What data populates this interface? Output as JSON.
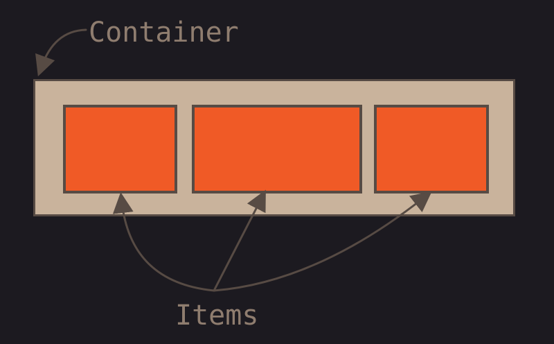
{
  "labels": {
    "container": "Container",
    "items": "Items"
  },
  "colors": {
    "background": "#1c1a20",
    "container_fill": "#c9b39c",
    "item_fill": "#f05a26",
    "stroke": "#574b44",
    "text": "#8f7d6f"
  }
}
